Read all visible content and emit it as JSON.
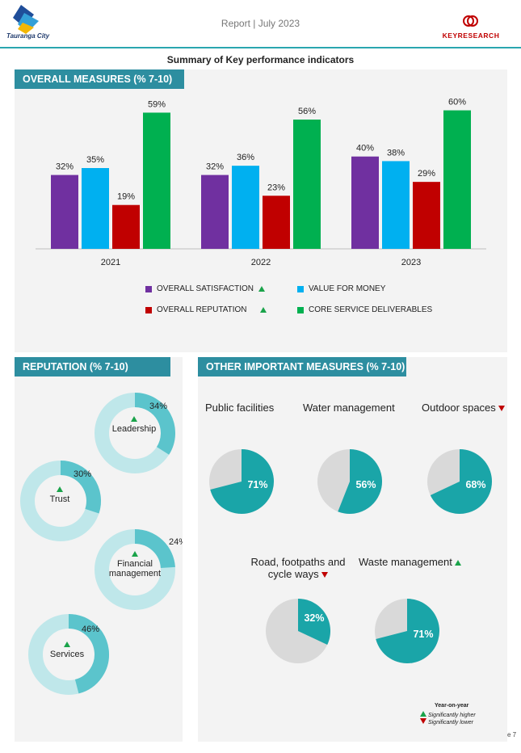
{
  "header": {
    "report_label": "Report | July 2023",
    "logo_left_text": "Tauranga City",
    "logo_right_text": "KEYRESEARCH"
  },
  "page_title": "Summary of Key performance indicators",
  "overall": {
    "tab_label": "OVERALL MEASURES (% 7-10)",
    "legend": [
      {
        "label": "OVERALL SATISFACTION",
        "color": "#7030a0",
        "trend": "up"
      },
      {
        "label": "VALUE FOR MONEY",
        "color": "#00b0f0",
        "trend": ""
      },
      {
        "label": "OVERALL REPUTATION",
        "color": "#c00000",
        "trend": "up"
      },
      {
        "label": "CORE SERVICE DELIVERABLES",
        "color": "#00b050",
        "trend": ""
      }
    ]
  },
  "chart_data": {
    "type": "bar",
    "categories": [
      "2021",
      "2022",
      "2023"
    ],
    "series": [
      {
        "name": "OVERALL SATISFACTION",
        "values": [
          32,
          32,
          40
        ],
        "color": "#7030a0"
      },
      {
        "name": "VALUE FOR MONEY",
        "values": [
          35,
          36,
          38
        ],
        "color": "#00b0f0"
      },
      {
        "name": "OVERALL REPUTATION",
        "values": [
          19,
          23,
          29
        ],
        "color": "#c00000"
      },
      {
        "name": "CORE SERVICE DELIVERABLES",
        "values": [
          59,
          56,
          60
        ],
        "color": "#00b050"
      }
    ],
    "ylim": [
      0,
      70
    ],
    "value_suffix": "%"
  },
  "reputation": {
    "tab_label": "REPUTATION (% 7-10)",
    "items": [
      {
        "label": "Leadership",
        "value": 34,
        "value_label": "34%",
        "trend": "up"
      },
      {
        "label": "Trust",
        "value": 30,
        "value_label": "30%",
        "trend": "up"
      },
      {
        "label": "Financial management",
        "value": 24,
        "value_label": "24%",
        "trend": "up"
      },
      {
        "label": "Services",
        "value": 46,
        "value_label": "46%",
        "trend": "up"
      }
    ]
  },
  "other": {
    "tab_label": "OTHER IMPORTANT MEASURES (% 7-10)",
    "items": [
      {
        "label": "Public facilities",
        "value": 71,
        "value_label": "71%",
        "trend": ""
      },
      {
        "label": "Water management",
        "value": 56,
        "value_label": "56%",
        "trend": ""
      },
      {
        "label": "Outdoor spaces",
        "value": 68,
        "value_label": "68%",
        "trend": "down"
      },
      {
        "label": "Road, footpaths and cycle ways",
        "value": 32,
        "value_label": "32%",
        "trend": "down"
      },
      {
        "label": "Waste management",
        "value": 71,
        "value_label": "71%",
        "trend": "up"
      }
    ]
  },
  "key": {
    "title": "Year-on-year",
    "up_label": "Significantly higher",
    "down_label": "Significantly lower"
  },
  "page_number": "e 7",
  "colors": {
    "teal": "#1aa5a8",
    "donut_light": "#bfe7ea",
    "donut_dark": "#5bc4cc",
    "pie_grey": "#d9d9d9",
    "tab": "#2d8ea0"
  }
}
